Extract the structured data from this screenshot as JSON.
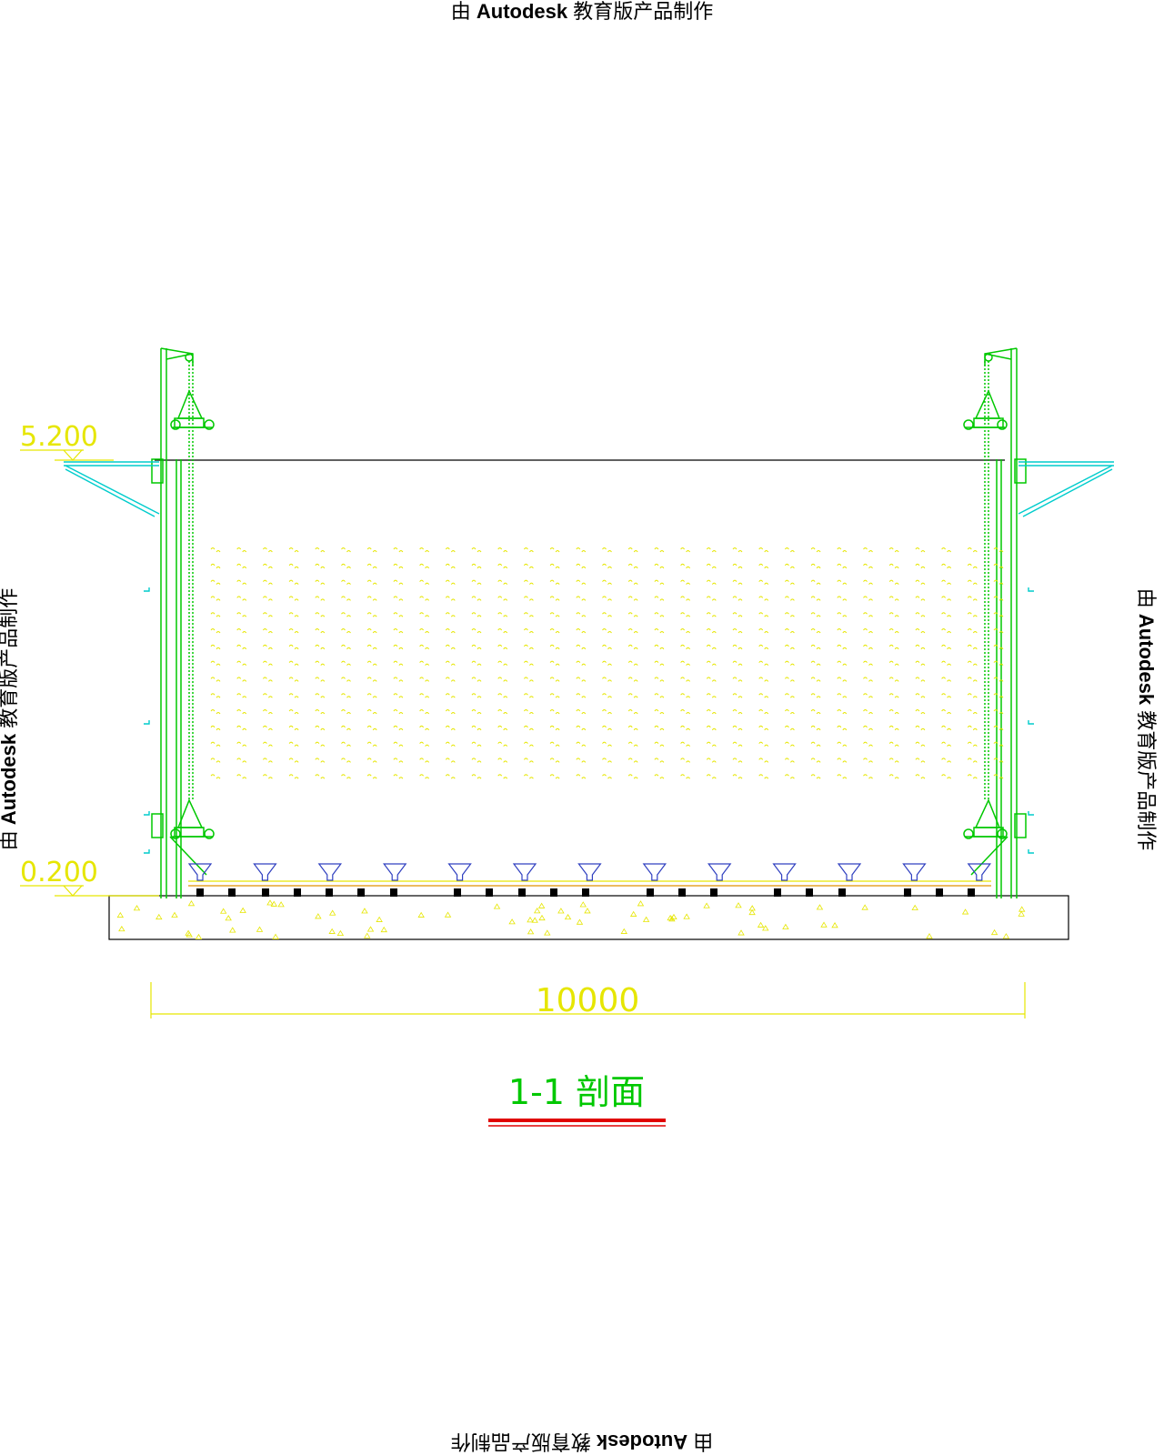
{
  "watermark": {
    "prefix": "由",
    "brand": "Autodesk",
    "suffix": "教育版产品制作"
  },
  "section": {
    "title": "1-1 剖面",
    "elevation_top": "5.200",
    "elevation_bottom": "0.200",
    "span_dimension": "10000",
    "colors": {
      "frame": "#00c800",
      "annotation": "#e6e600",
      "accent": "#00cccc",
      "title_underline": "#e00000",
      "outline": "#000000"
    }
  }
}
